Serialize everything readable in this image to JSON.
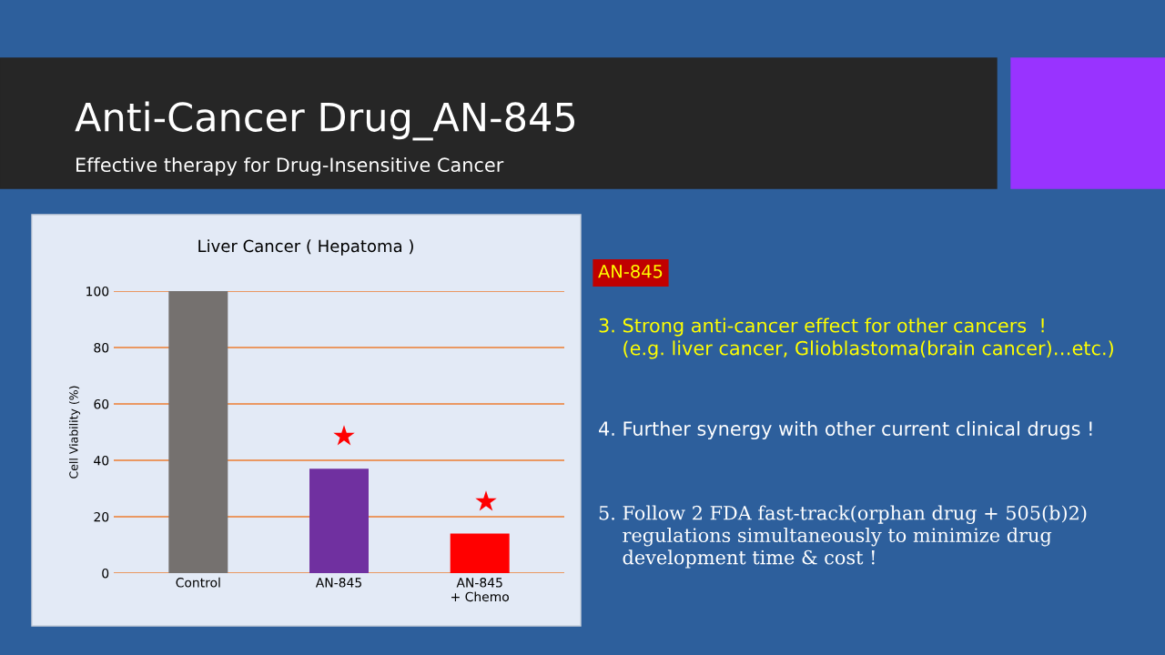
{
  "chart_data": {
    "type": "bar",
    "title": "Anti-Cancer Drug_AN-845",
    "subtitle": "Effective therapy for Drug-Insensitive Cancer",
    "categories": [
      "Control",
      "AN-845",
      "AN-845\n+ Chemo"
    ],
    "values": [
      100,
      37,
      14
    ],
    "colors": [
      "#75716f",
      "#7030a0",
      "#ff0000"
    ],
    "ylabel": "Cell Viability (%)",
    "ylim": [
      0,
      100
    ],
    "yticks": [
      0,
      20,
      40,
      60,
      80,
      100
    ],
    "grid": "y",
    "annotations": [
      "Liver Cancer ( Hepatoma )",
      "AN-845",
      "3. Strong anti-cancer effect for other cancers  !\n    (e.g. liver cancer, Glioblastoma(brain cancer)…etc.)",
      "4. Further synergy with other current clinical drugs !",
      "5. Follow 2 FDA fast-track(orphan drug + 505(b)2)\n    regulations simultaneously to minimize drug\n    development time & cost !",
      "★",
      "★"
    ]
  }
}
